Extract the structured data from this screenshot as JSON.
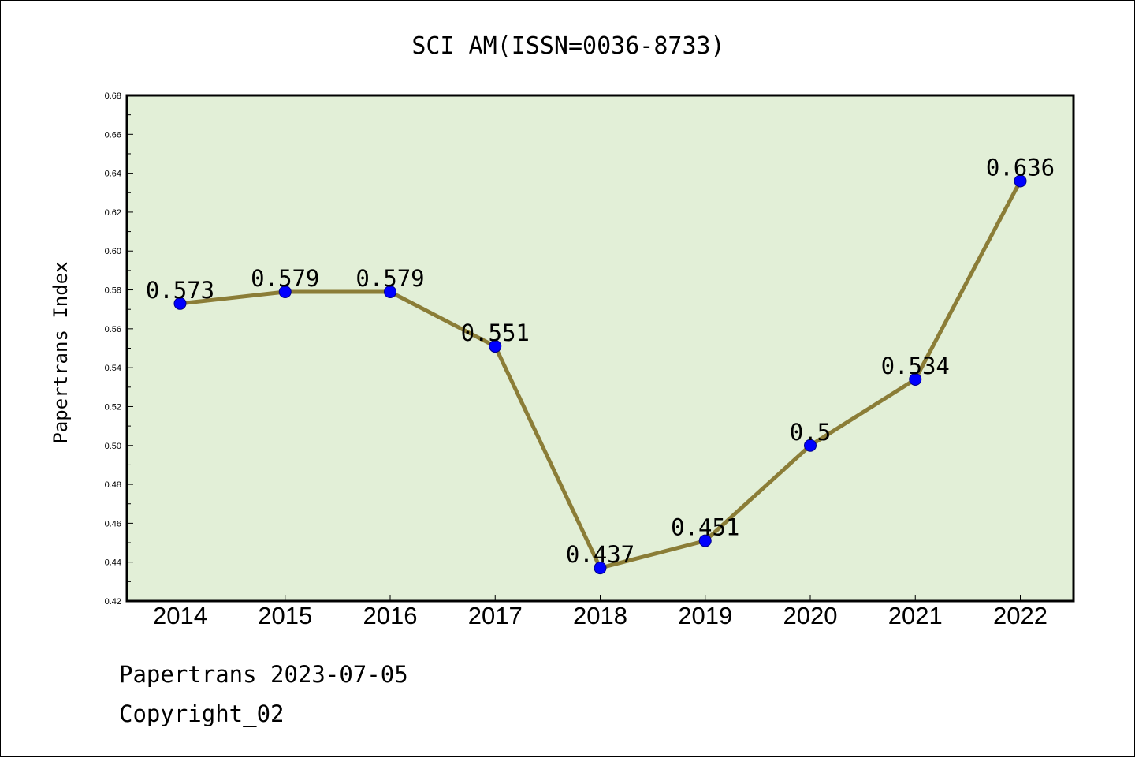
{
  "chart_data": {
    "type": "line",
    "title": "SCI AM(ISSN=0036-8733)",
    "xlabel": "",
    "ylabel": "Papertrans Index",
    "categories": [
      "2014",
      "2015",
      "2016",
      "2017",
      "2018",
      "2019",
      "2020",
      "2021",
      "2022"
    ],
    "series": [
      {
        "values": [
          0.573,
          0.579,
          0.579,
          0.551,
          0.437,
          0.451,
          0.5,
          0.534,
          0.636
        ],
        "labels": [
          "0.573",
          "0.579",
          "0.579",
          "0.551",
          "0.437",
          "0.451",
          "0.5",
          "0.534",
          "0.636"
        ]
      }
    ],
    "ylim": [
      0.42,
      0.68
    ],
    "yticks": [
      "0.42",
      "0.44",
      "0.46",
      "0.48",
      "0.50",
      "0.52",
      "0.54",
      "0.56",
      "0.58",
      "0.60",
      "0.62",
      "0.64",
      "0.66",
      "0.68"
    ],
    "grid": false,
    "legend": "none",
    "colors": {
      "plot_background": "#e2efd7",
      "line": "#8b7d37",
      "marker": "#0000ff"
    }
  },
  "footer": {
    "line1": "Papertrans 2023-07-05",
    "line2": "Copyright_02"
  }
}
